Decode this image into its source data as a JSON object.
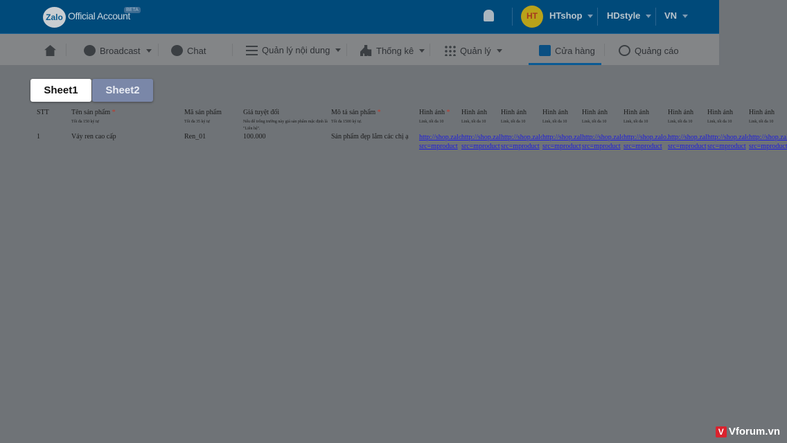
{
  "header": {
    "logo_text": "Zalo",
    "title": "Official Account",
    "badge": "BETA",
    "account": "HTshop",
    "account_avatar_text": "HT",
    "page": "HDstyle",
    "language": "VN"
  },
  "nav": {
    "items": [
      {
        "label": "Broadcast"
      },
      {
        "label": "Chat"
      },
      {
        "label": "Quản lý nội dung"
      },
      {
        "label": "Thống kê"
      },
      {
        "label": "Quản lý"
      },
      {
        "label": "Cửa hàng"
      },
      {
        "label": "Quảng cáo"
      }
    ],
    "active": "Cửa hàng"
  },
  "sheets": [
    "Sheet1",
    "Sheet2"
  ],
  "table": {
    "headers": [
      {
        "title": "STT",
        "sub": "",
        "required": false
      },
      {
        "title": "Tên sản phẩm",
        "sub": "Tối đa 150 ký tự",
        "required": true
      },
      {
        "title": "Mã sản phẩm",
        "sub": "Tối đa 35 ký tự",
        "required": false
      },
      {
        "title": "Giá tuyệt đối",
        "sub": "Nếu để trống trường này giá sản phẩm mặc định là \"Liên hệ\".",
        "required": false
      },
      {
        "title": "Mô tả sản phẩm",
        "sub": "Tối đa 1500 ký tự.",
        "required": true
      }
    ],
    "image_header": {
      "title": "Hình ảnh",
      "sub": "Link, tối đa 10"
    },
    "row": {
      "stt": "1",
      "name": "Váy ren cao cấp",
      "code": "Ren_01",
      "price": "100.000",
      "description": "Sản phẩm đẹp lắm các chị ạ"
    },
    "image_links": [
      "http://shop.zalo.",
      "http://shop.zal",
      "http://shop.zalo",
      "http://shop.zal",
      "http://shop.zalo",
      "http://shop.zalo.",
      "http://shop.zal",
      "http://shop.zalo",
      "http://shop.zalo"
    ],
    "image_link_suffix": "src=mproduct"
  },
  "watermark": "Vforum.vn"
}
